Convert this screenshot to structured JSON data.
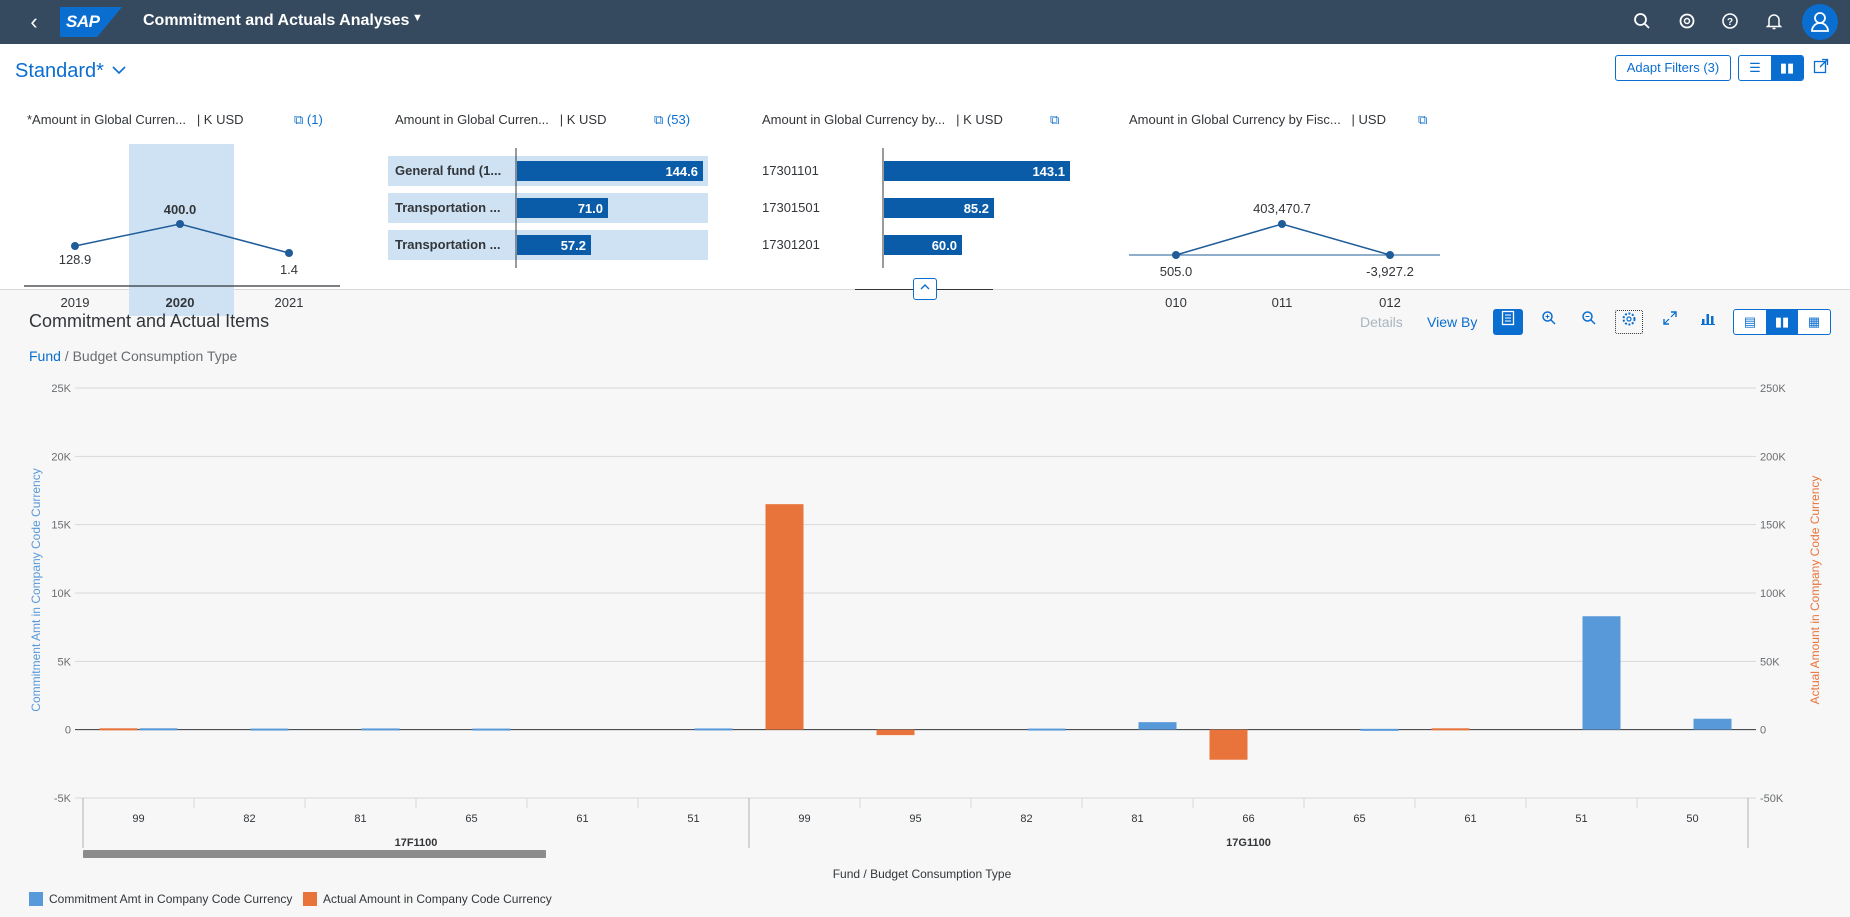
{
  "shell": {
    "title": "Commitment and Actuals Analyses",
    "logo_text": "SAP",
    "icons": [
      "search-icon",
      "co-pilot-icon",
      "help-icon",
      "notifications-icon",
      "user-avatar-icon"
    ]
  },
  "header": {
    "variant": "Standard*",
    "adapt_filters": "Adapt Filters (3)"
  },
  "cards": [
    {
      "title": "*Amount in Global Curren...",
      "unit": "| K USD",
      "link": "(1)",
      "points": [
        {
          "label": "2019",
          "value": "128.9"
        },
        {
          "label": "2020",
          "value": "400.0"
        },
        {
          "label": "2021",
          "value": "1.4"
        }
      ]
    },
    {
      "title": "Amount in Global Curren...",
      "unit": "| K USD",
      "link": "(53)",
      "bars": [
        {
          "label": "General fund (1...",
          "value": "144.6"
        },
        {
          "label": "Transportation ...",
          "value": "71.0"
        },
        {
          "label": "Transportation ...",
          "value": "57.2"
        }
      ]
    },
    {
      "title": "Amount in Global Currency by...",
      "unit": "| K USD",
      "bars": [
        {
          "label": "17301101",
          "value": "143.1"
        },
        {
          "label": "17301501",
          "value": "85.2"
        },
        {
          "label": "17301201",
          "value": "60.0"
        }
      ]
    },
    {
      "title": "Amount in Global Currency by Fisc...",
      "unit": "| USD",
      "points": [
        {
          "label": "010",
          "value": "505.0"
        },
        {
          "label": "011",
          "value": "403,470.7"
        },
        {
          "label": "012",
          "value": "-3,927.2"
        }
      ]
    }
  ],
  "chart_section": {
    "title": "Commitment and Actual Items",
    "breadcrumb_link": "Fund",
    "breadcrumb_rest": " / Budget Consumption Type",
    "details": "Details",
    "view_by": "View By"
  },
  "colors": {
    "commitment": "#5899da",
    "actual": "#e8743b",
    "brand": "#0a6ed1",
    "shell": "#354a5f"
  },
  "chart_data": {
    "type": "bar",
    "xlabel": "Fund / Budget Consumption Type",
    "ylabel_left": "Commitment Amt in Company Code Currency",
    "ylabel_right": "Actual Amount in Company Code Currency",
    "ylim_left": [
      -5000,
      25000
    ],
    "ylim_right": [
      -50000,
      250000
    ],
    "yticks_left": [
      "-5K",
      "0",
      "5K",
      "10K",
      "15K",
      "20K",
      "25K"
    ],
    "yticks_right": [
      "-50K",
      "0",
      "50K",
      "100K",
      "150K",
      "200K",
      "250K"
    ],
    "groups": [
      {
        "name": "17F1100",
        "categories": [
          "99",
          "82",
          "81",
          "65",
          "61",
          "51"
        ]
      },
      {
        "name": "17G1100",
        "categories": [
          "99",
          "95",
          "82",
          "81",
          "66",
          "65",
          "61",
          "51",
          "50"
        ]
      }
    ],
    "series": [
      {
        "name": "Commitment Amt in Company Code Currency",
        "axis": "left",
        "values": [
          100,
          80,
          90,
          80,
          0,
          90,
          0,
          0,
          80,
          550,
          0,
          60,
          0,
          8300,
          800
        ]
      },
      {
        "name": "Actual Amount in Company Code Currency",
        "axis": "right",
        "values": [
          1000,
          0,
          0,
          0,
          0,
          0,
          165000,
          -4000,
          0,
          0,
          -22000,
          0,
          1000,
          0,
          0
        ]
      }
    ]
  }
}
